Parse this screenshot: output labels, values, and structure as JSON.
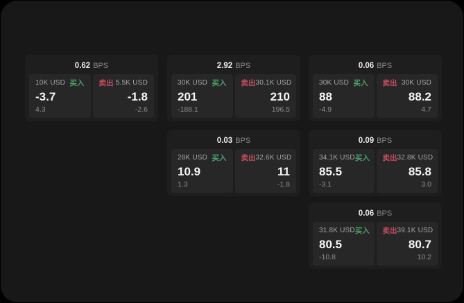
{
  "labels": {
    "bps": "BPS",
    "buy": "买入",
    "sell": "卖出"
  },
  "colors": {
    "page_bg": "#000000",
    "container_bg": "#181818",
    "card_bg": "#1e1e1e",
    "panel_bg": "#272727",
    "buy_green": "#4e9e6c",
    "sell_red": "#c44d60",
    "value_text": "#f5f5f5",
    "muted_text": "#a6a6a6"
  },
  "cards": [
    {
      "bps": "0.62",
      "buy": {
        "size": "10K USD",
        "value": "-3.7",
        "delta": "4.3"
      },
      "sell": {
        "size": "5.5K USD",
        "value": "-1.8",
        "delta": "-2.6"
      }
    },
    {
      "bps": "2.92",
      "buy": {
        "size": "30K USD",
        "value": "201",
        "delta": "-188.1"
      },
      "sell": {
        "size": "30.1K USD",
        "value": "210",
        "delta": "196.5"
      }
    },
    {
      "bps": "0.06",
      "buy": {
        "size": "30K USD",
        "value": "88",
        "delta": "-4.9"
      },
      "sell": {
        "size": "30K USD",
        "value": "88.2",
        "delta": "4.7"
      }
    },
    {
      "bps": "0.03",
      "buy": {
        "size": "28K USD",
        "value": "10.9",
        "delta": "1.3"
      },
      "sell": {
        "size": "32.6K USD",
        "value": "11",
        "delta": "-1.8"
      }
    },
    {
      "bps": "0.09",
      "buy": {
        "size": "34.1K USD",
        "value": "85.5",
        "delta": "-3.1"
      },
      "sell": {
        "size": "32.8K USD",
        "value": "85.8",
        "delta": "3.0"
      }
    },
    {
      "bps": "0.06",
      "buy": {
        "size": "31.8K USD",
        "value": "80.5",
        "delta": "-10.8"
      },
      "sell": {
        "size": "39.1K USD",
        "value": "80.7",
        "delta": "10.2"
      }
    }
  ]
}
